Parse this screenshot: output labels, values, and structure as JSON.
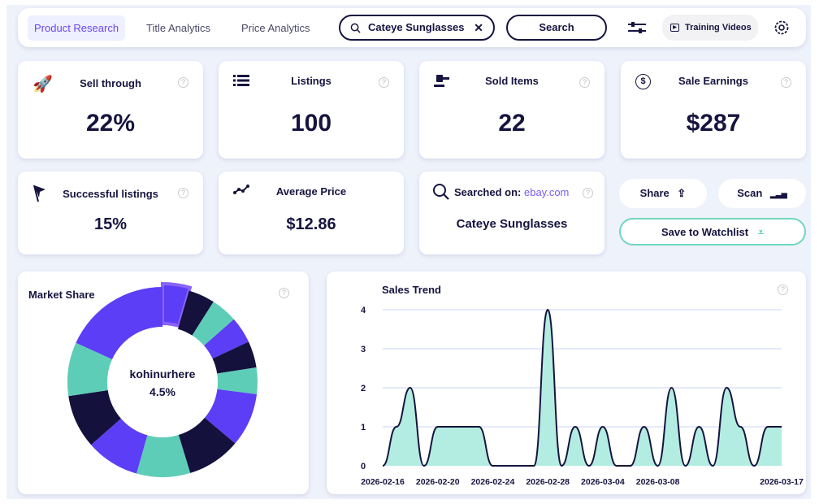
{
  "nav": {
    "tabs": [
      {
        "label": "Product Research",
        "active": true
      },
      {
        "label": "Title Analytics"
      },
      {
        "label": "Price Analytics"
      }
    ],
    "search_value": "Cateye Sunglasses",
    "search_button": "Search",
    "training_videos": "Training Videos"
  },
  "stats": {
    "sell_through": {
      "label": "Sell through",
      "value": "22%"
    },
    "listings": {
      "label": "Listings",
      "value": "100"
    },
    "sold_items": {
      "label": "Sold Items",
      "value": "22"
    },
    "sale_earnings": {
      "label": "Sale Earnings",
      "value": "$287"
    },
    "successful_listings": {
      "label": "Successful listings",
      "value": "15%"
    },
    "average_price": {
      "label": "Average Price",
      "value": "$12.86"
    },
    "searched_on": {
      "label": "Searched on:",
      "site": "ebay.com",
      "query": "Cateye Sunglasses"
    }
  },
  "actions": {
    "share": "Share",
    "scan": "Scan",
    "watchlist": "Save to Watchlist"
  },
  "colors": {
    "purple": "#5b3ef5",
    "dark": "#14113d",
    "teal": "#5ecdb8",
    "accent": "#6b46f5"
  },
  "chart_data": [
    {
      "type": "pie",
      "title": "Market Share",
      "center_label": "kohinurhere",
      "center_value": "4.5%",
      "values": [
        4.5,
        4.5,
        4.5,
        4.5,
        4.5,
        4.5,
        9.1,
        9.1,
        9.1,
        9.1,
        9.1,
        9.1,
        18.2
      ],
      "colors": [
        "purple",
        "dark",
        "teal",
        "purple",
        "dark",
        "teal",
        "purple",
        "dark",
        "teal",
        "purple",
        "dark",
        "teal",
        "purple"
      ],
      "highlighted_index": 0
    },
    {
      "type": "area",
      "title": "Sales Trend",
      "ylim": [
        0,
        4
      ],
      "yticks": [
        "0",
        "1",
        "2",
        "3",
        "4"
      ],
      "start_date": "2026-02-16",
      "xtick_labels": [
        {
          "index": 0,
          "label": "2026-02-16"
        },
        {
          "index": 4,
          "label": "2026-02-20"
        },
        {
          "index": 8,
          "label": "2026-02-24"
        },
        {
          "index": 12,
          "label": "2026-02-28"
        },
        {
          "index": 16,
          "label": "2026-03-04"
        },
        {
          "index": 20,
          "label": "2026-03-08"
        },
        {
          "index": 29,
          "label": "2026-03-17"
        }
      ],
      "values": [
        0,
        1,
        2,
        0,
        1,
        1,
        1,
        1,
        0,
        0,
        0,
        0,
        4,
        0,
        1,
        0,
        1,
        0,
        0,
        1,
        0,
        2,
        0,
        1,
        0,
        2,
        1,
        0,
        1,
        1
      ]
    }
  ]
}
